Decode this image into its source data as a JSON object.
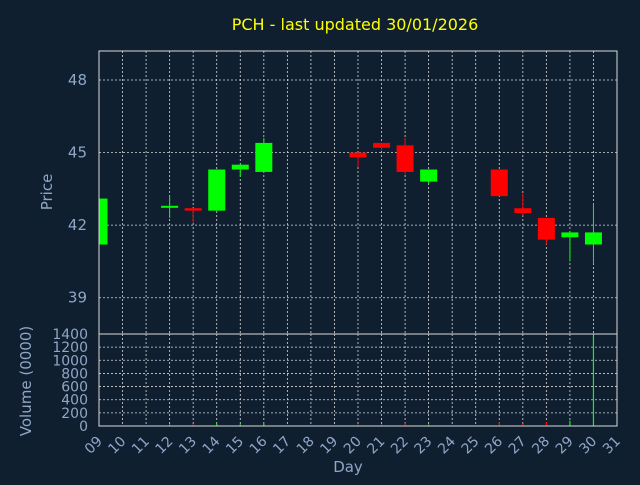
{
  "chart_data": {
    "type": "candlestick",
    "title": "PCH - last updated 30/01/2026",
    "xlabel": "Day",
    "ylabel_price": "Price",
    "ylabel_volume": "Volume (0000)",
    "x_tick_labels": [
      "09",
      "10",
      "11",
      "12",
      "13",
      "14",
      "15",
      "16",
      "17",
      "18",
      "19",
      "20",
      "21",
      "22",
      "23",
      "24",
      "25",
      "26",
      "27",
      "28",
      "29",
      "30",
      "31"
    ],
    "price_ticks": [
      "48",
      "45",
      "42",
      "39"
    ],
    "price_tick_values": [
      48,
      45,
      42,
      39
    ],
    "price_range": [
      37.5,
      49.2
    ],
    "volume_ticks": [
      "1400",
      "1200",
      "1000",
      "800",
      "600",
      "400",
      "200",
      "0"
    ],
    "volume_tick_values": [
      1400,
      1200,
      1000,
      800,
      600,
      400,
      200,
      0
    ],
    "volume_range": [
      0,
      1400
    ],
    "grid": true,
    "colors": {
      "up": "#00ff00",
      "down": "#ff0000",
      "title": "#ffff00",
      "axis_text": "#8fa6c6",
      "background": "#0f1f30"
    },
    "candles": [
      {
        "day": "09",
        "open": 41.2,
        "high": 43.1,
        "low": 41.2,
        "close": 43.1,
        "volume": 15
      },
      {
        "day": "12",
        "open": 42.8,
        "high": 43.2,
        "low": 42.3,
        "close": 42.8,
        "volume": 20
      },
      {
        "day": "13",
        "open": 42.7,
        "high": 42.7,
        "low": 42.1,
        "close": 42.6,
        "volume": 25
      },
      {
        "day": "14",
        "open": 42.6,
        "high": 44.3,
        "low": 42.6,
        "close": 44.3,
        "volume": 30
      },
      {
        "day": "15",
        "open": 44.3,
        "high": 44.5,
        "low": 44.0,
        "close": 44.5,
        "volume": 25
      },
      {
        "day": "16",
        "open": 44.2,
        "high": 45.6,
        "low": 44.2,
        "close": 45.4,
        "volume": 35
      },
      {
        "day": "20",
        "open": 45.0,
        "high": 45.0,
        "low": 44.4,
        "close": 44.8,
        "volume": 20
      },
      {
        "day": "21",
        "open": 45.4,
        "high": 45.4,
        "low": 45.1,
        "close": 45.2,
        "volume": 25
      },
      {
        "day": "22",
        "open": 45.3,
        "high": 45.6,
        "low": 44.1,
        "close": 44.2,
        "volume": 40
      },
      {
        "day": "23",
        "open": 43.8,
        "high": 44.3,
        "low": 43.7,
        "close": 44.3,
        "volume": 20
      },
      {
        "day": "26",
        "open": 44.3,
        "high": 44.3,
        "low": 43.2,
        "close": 43.2,
        "volume": 55
      },
      {
        "day": "27",
        "open": 42.7,
        "high": 43.3,
        "low": 42.4,
        "close": 42.5,
        "volume": 35
      },
      {
        "day": "28",
        "open": 42.3,
        "high": 42.3,
        "low": 41.2,
        "close": 41.4,
        "volume": 60
      },
      {
        "day": "29",
        "open": 41.5,
        "high": 41.7,
        "low": 40.5,
        "close": 41.7,
        "volume": 80
      },
      {
        "day": "30",
        "open": 41.2,
        "high": 42.9,
        "low": 40.4,
        "close": 41.7,
        "volume": 1380
      }
    ]
  }
}
